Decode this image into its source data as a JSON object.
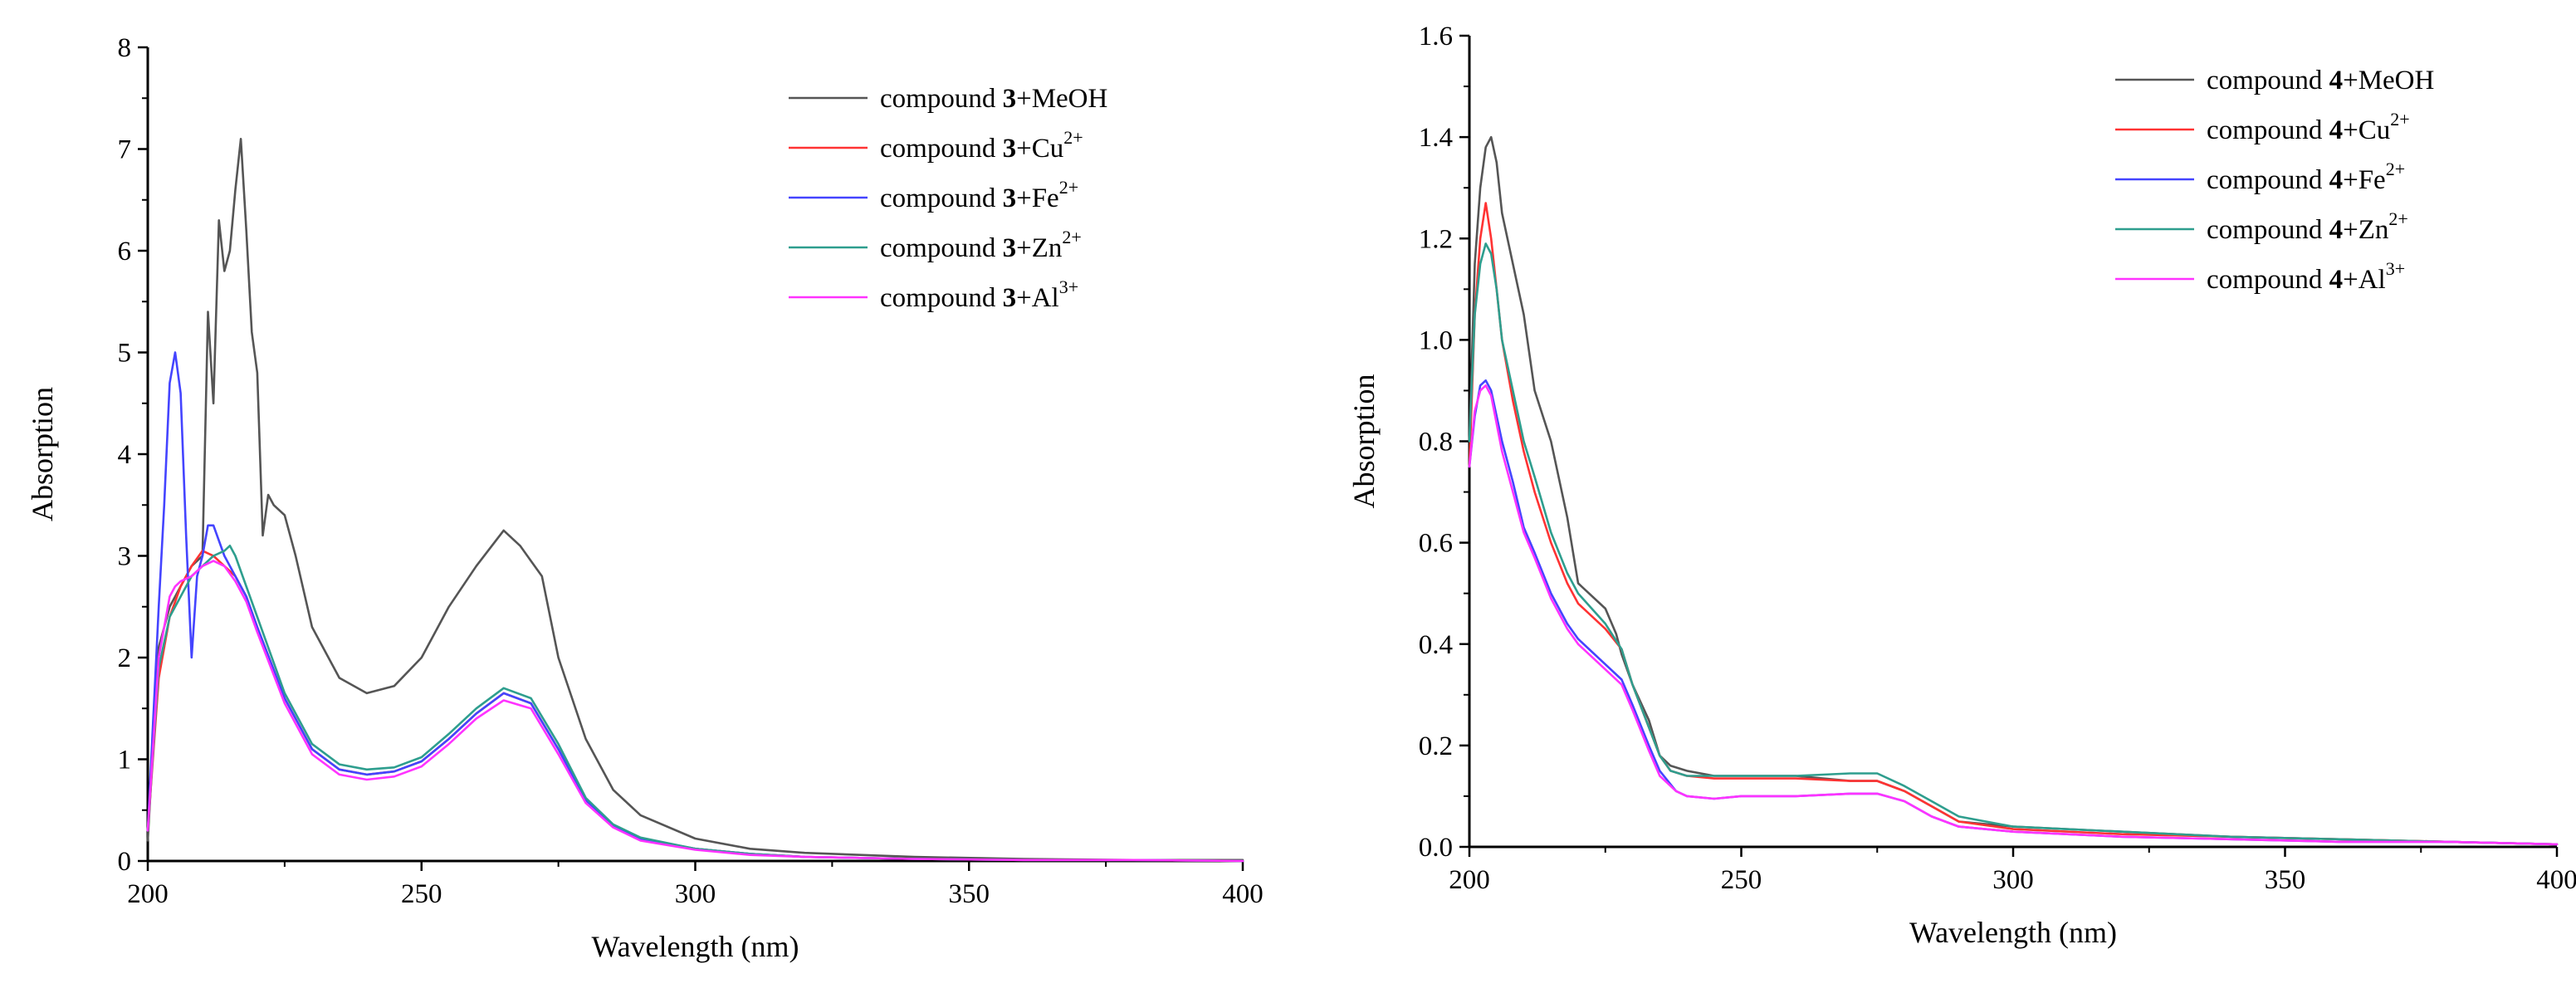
{
  "chart_data": [
    {
      "type": "line",
      "xlabel": "Wavelength (nm)",
      "ylabel": "Absorption",
      "xlim": [
        200,
        400
      ],
      "ylim": [
        0,
        8
      ],
      "x_ticks": [
        "200",
        "250",
        "300",
        "350",
        "400"
      ],
      "y_ticks": [
        "0",
        "1",
        "2",
        "3",
        "4",
        "5",
        "6",
        "7",
        "8"
      ],
      "y_tick_values": [
        0,
        1,
        2,
        3,
        4,
        5,
        6,
        7,
        8
      ],
      "legend_position": "top-right",
      "series": [
        {
          "name": "compound 3+MeOH",
          "prefix": "compound ",
          "bold": "3",
          "suffix": "+MeOH",
          "sup": "",
          "color": "#555555",
          "x": [
            200,
            202,
            204,
            206,
            208,
            210,
            211,
            212,
            213,
            214,
            215,
            216,
            217,
            218,
            219,
            220,
            221,
            222,
            223,
            225,
            227,
            230,
            235,
            240,
            245,
            250,
            255,
            260,
            265,
            268,
            270,
            272,
            275,
            280,
            285,
            290,
            300,
            310,
            320,
            340,
            360,
            380,
            400
          ],
          "y": [
            0.2,
            2.1,
            2.5,
            2.7,
            2.9,
            3.0,
            5.4,
            4.5,
            6.3,
            5.8,
            6.0,
            6.6,
            7.1,
            6.2,
            5.2,
            4.8,
            3.2,
            3.6,
            3.5,
            3.4,
            3.0,
            2.3,
            1.8,
            1.65,
            1.72,
            2.0,
            2.5,
            2.9,
            3.25,
            3.1,
            2.95,
            2.8,
            2.0,
            1.2,
            0.7,
            0.45,
            0.22,
            0.12,
            0.08,
            0.04,
            0.02,
            0.01,
            0.01
          ]
        },
        {
          "name": "compound 3+Cu2+",
          "prefix": "compound ",
          "bold": "3",
          "suffix": "+Cu",
          "sup": "2+",
          "color": "#ff3333",
          "x": [
            200,
            202,
            204,
            206,
            208,
            210,
            212,
            214,
            216,
            218,
            220,
            225,
            230,
            235,
            240,
            245,
            250,
            255,
            260,
            265,
            270,
            275,
            280,
            285,
            290,
            300,
            310,
            320,
            340,
            360,
            380,
            400
          ],
          "y": [
            0.3,
            1.8,
            2.4,
            2.7,
            2.9,
            3.05,
            3.0,
            2.9,
            2.8,
            2.6,
            2.3,
            1.6,
            1.1,
            0.9,
            0.85,
            0.88,
            0.98,
            1.2,
            1.45,
            1.65,
            1.55,
            1.1,
            0.6,
            0.35,
            0.22,
            0.12,
            0.07,
            0.04,
            0.02,
            0.01,
            0.01,
            0.0
          ]
        },
        {
          "name": "compound 3+Fe2+",
          "prefix": "compound ",
          "bold": "3",
          "suffix": "+Fe",
          "sup": "2+",
          "color": "#4444ff",
          "x": [
            200,
            202,
            203,
            204,
            205,
            206,
            207,
            208,
            209,
            210,
            211,
            212,
            214,
            216,
            218,
            220,
            225,
            230,
            235,
            240,
            245,
            250,
            255,
            260,
            265,
            270,
            275,
            280,
            285,
            290,
            300,
            310,
            320,
            340,
            360,
            380,
            400
          ],
          "y": [
            0.3,
            2.5,
            3.5,
            4.7,
            5.0,
            4.6,
            3.2,
            2.0,
            2.8,
            3.0,
            3.3,
            3.3,
            3.0,
            2.8,
            2.6,
            2.3,
            1.6,
            1.1,
            0.9,
            0.85,
            0.88,
            0.98,
            1.2,
            1.45,
            1.65,
            1.55,
            1.1,
            0.6,
            0.35,
            0.22,
            0.12,
            0.07,
            0.04,
            0.02,
            0.01,
            0.01,
            0.0
          ]
        },
        {
          "name": "compound 3+Zn2+",
          "prefix": "compound ",
          "bold": "3",
          "suffix": "+Zn",
          "sup": "2+",
          "color": "#2e9e8e",
          "x": [
            200,
            202,
            204,
            206,
            208,
            210,
            212,
            214,
            215,
            216,
            218,
            220,
            225,
            230,
            235,
            240,
            245,
            250,
            255,
            260,
            265,
            270,
            275,
            280,
            285,
            290,
            300,
            310,
            320,
            340,
            360,
            380,
            400
          ],
          "y": [
            0.3,
            1.9,
            2.4,
            2.6,
            2.8,
            2.9,
            3.0,
            3.05,
            3.1,
            3.0,
            2.7,
            2.4,
            1.65,
            1.15,
            0.95,
            0.9,
            0.92,
            1.02,
            1.25,
            1.5,
            1.7,
            1.6,
            1.15,
            0.62,
            0.36,
            0.23,
            0.12,
            0.07,
            0.04,
            0.02,
            0.01,
            0.01,
            0.0
          ]
        },
        {
          "name": "compound 3+Al3+",
          "prefix": "compound ",
          "bold": "3",
          "suffix": "+Al",
          "sup": "3+",
          "color": "#ff33ff",
          "x": [
            200,
            202,
            204,
            205,
            206,
            208,
            210,
            212,
            214,
            216,
            218,
            220,
            225,
            230,
            235,
            240,
            245,
            250,
            255,
            260,
            265,
            270,
            275,
            280,
            285,
            290,
            300,
            310,
            320,
            340,
            360,
            380,
            400
          ],
          "y": [
            0.3,
            2.0,
            2.6,
            2.7,
            2.75,
            2.8,
            2.9,
            2.95,
            2.9,
            2.75,
            2.55,
            2.25,
            1.55,
            1.05,
            0.85,
            0.8,
            0.83,
            0.93,
            1.15,
            1.4,
            1.58,
            1.5,
            1.05,
            0.57,
            0.33,
            0.2,
            0.11,
            0.06,
            0.04,
            0.02,
            0.01,
            0.01,
            0.0
          ]
        }
      ]
    },
    {
      "type": "line",
      "xlabel": "Wavelength (nm)",
      "ylabel": "Absorption",
      "xlim": [
        200,
        400
      ],
      "ylim": [
        0,
        1.6
      ],
      "x_ticks": [
        "200",
        "250",
        "300",
        "350",
        "400"
      ],
      "y_ticks": [
        "0.0",
        "0.2",
        "0.4",
        "0.6",
        "0.8",
        "1.0",
        "1.2",
        "1.4",
        "1.6"
      ],
      "y_tick_values": [
        0,
        0.2,
        0.4,
        0.6,
        0.8,
        1.0,
        1.2,
        1.4,
        1.6
      ],
      "legend_position": "top-right",
      "series": [
        {
          "name": "compound 4+MeOH",
          "prefix": "compound ",
          "bold": "4",
          "suffix": "+MeOH",
          "sup": "",
          "color": "#555555",
          "x": [
            200,
            201,
            202,
            203,
            204,
            205,
            206,
            208,
            210,
            212,
            215,
            218,
            220,
            222,
            225,
            227,
            228,
            230,
            233,
            235,
            237,
            240,
            245,
            250,
            260,
            270,
            275,
            280,
            285,
            290,
            300,
            320,
            340,
            360,
            380,
            400
          ],
          "y": [
            0.8,
            1.15,
            1.3,
            1.38,
            1.4,
            1.35,
            1.25,
            1.15,
            1.05,
            0.9,
            0.8,
            0.65,
            0.52,
            0.5,
            0.47,
            0.42,
            0.38,
            0.32,
            0.25,
            0.18,
            0.16,
            0.15,
            0.14,
            0.14,
            0.14,
            0.13,
            0.13,
            0.11,
            0.08,
            0.05,
            0.04,
            0.03,
            0.02,
            0.015,
            0.01,
            0.005
          ]
        },
        {
          "name": "compound 4+Cu2+",
          "prefix": "compound ",
          "bold": "4",
          "suffix": "+Cu",
          "sup": "2+",
          "color": "#ff3333",
          "x": [
            200,
            201,
            202,
            203,
            204,
            205,
            206,
            208,
            210,
            212,
            215,
            218,
            220,
            225,
            228,
            230,
            235,
            237,
            240,
            245,
            250,
            260,
            270,
            275,
            280,
            285,
            290,
            300,
            320,
            340,
            360,
            380,
            400
          ],
          "y": [
            0.75,
            1.05,
            1.2,
            1.27,
            1.2,
            1.1,
            1.0,
            0.88,
            0.78,
            0.7,
            0.6,
            0.52,
            0.48,
            0.43,
            0.39,
            0.32,
            0.18,
            0.15,
            0.14,
            0.135,
            0.135,
            0.135,
            0.13,
            0.13,
            0.11,
            0.08,
            0.05,
            0.035,
            0.025,
            0.02,
            0.015,
            0.01,
            0.005
          ]
        },
        {
          "name": "compound 4+Fe2+",
          "prefix": "compound ",
          "bold": "4",
          "suffix": "+Fe",
          "sup": "2+",
          "color": "#4444ff",
          "x": [
            200,
            201,
            202,
            203,
            204,
            206,
            208,
            210,
            212,
            215,
            218,
            220,
            225,
            228,
            230,
            233,
            235,
            238,
            240,
            245,
            250,
            260,
            270,
            275,
            280,
            285,
            290,
            300,
            320,
            340,
            360,
            380,
            400
          ],
          "y": [
            0.75,
            0.85,
            0.91,
            0.92,
            0.9,
            0.8,
            0.72,
            0.63,
            0.58,
            0.5,
            0.44,
            0.41,
            0.36,
            0.33,
            0.28,
            0.2,
            0.15,
            0.11,
            0.1,
            0.095,
            0.1,
            0.1,
            0.105,
            0.105,
            0.09,
            0.06,
            0.04,
            0.03,
            0.02,
            0.015,
            0.01,
            0.01,
            0.005
          ]
        },
        {
          "name": "compound 4+Zn2+",
          "prefix": "compound ",
          "bold": "4",
          "suffix": "+Zn",
          "sup": "2+",
          "color": "#2e9e8e",
          "x": [
            200,
            201,
            202,
            203,
            204,
            205,
            206,
            208,
            210,
            212,
            215,
            218,
            220,
            225,
            228,
            230,
            235,
            237,
            240,
            245,
            250,
            260,
            270,
            275,
            280,
            285,
            290,
            300,
            320,
            340,
            360,
            380,
            400
          ],
          "y": [
            0.8,
            1.05,
            1.15,
            1.19,
            1.17,
            1.1,
            1.0,
            0.9,
            0.8,
            0.73,
            0.62,
            0.54,
            0.5,
            0.44,
            0.39,
            0.32,
            0.18,
            0.15,
            0.14,
            0.14,
            0.14,
            0.14,
            0.145,
            0.145,
            0.12,
            0.09,
            0.06,
            0.04,
            0.03,
            0.02,
            0.015,
            0.01,
            0.005
          ]
        },
        {
          "name": "compound 4+Al3+",
          "prefix": "compound ",
          "bold": "4",
          "suffix": "+Al",
          "sup": "3+",
          "color": "#ff33ff",
          "x": [
            200,
            201,
            202,
            203,
            204,
            206,
            208,
            210,
            212,
            215,
            218,
            220,
            225,
            228,
            230,
            233,
            235,
            238,
            240,
            245,
            250,
            260,
            270,
            275,
            280,
            285,
            290,
            300,
            320,
            340,
            360,
            380,
            400
          ],
          "y": [
            0.75,
            0.86,
            0.9,
            0.91,
            0.89,
            0.78,
            0.7,
            0.62,
            0.57,
            0.49,
            0.43,
            0.4,
            0.35,
            0.32,
            0.27,
            0.19,
            0.14,
            0.11,
            0.1,
            0.095,
            0.1,
            0.1,
            0.105,
            0.105,
            0.09,
            0.06,
            0.04,
            0.03,
            0.02,
            0.015,
            0.01,
            0.01,
            0.005
          ]
        }
      ]
    }
  ]
}
